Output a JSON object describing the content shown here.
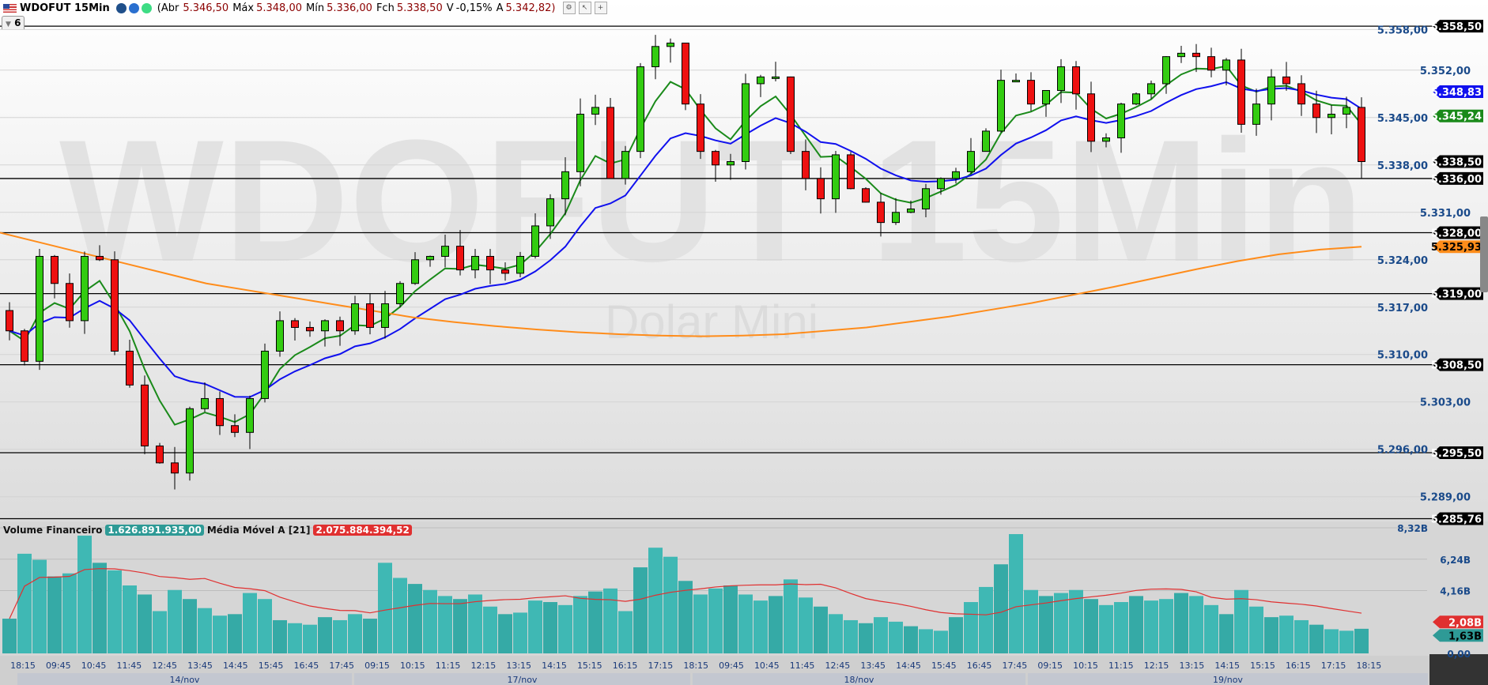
{
  "header": {
    "symbol": "WDOFUT 15Min",
    "open_label": "(Abr",
    "open": "5.346,50",
    "high_label": "Máx",
    "high": "5.348,00",
    "low_label": "Mín",
    "low": "5.336,00",
    "close_label": "Fch",
    "close": "5.338,50",
    "var_label": "V",
    "var": "-0,15%",
    "avg_label": "A",
    "avg": "5.342,82)",
    "indicator_count": "6",
    "icons": [
      "us-flag-icon",
      "bmf-icon",
      "blue-circle-icon",
      "green-status-icon",
      "settings-icon",
      "pointer-icon",
      "add-icon"
    ]
  },
  "watermark": {
    "title": "WDOFUT 15Min",
    "subtitle": "Dolar Mini"
  },
  "volume_header": {
    "label": "Volume Financeiro",
    "value": "1.626.891.935,00",
    "ma_label": "Média Móvel A [21]",
    "ma_value": "2.075.884.394,52"
  },
  "colors": {
    "up": "#33cc11",
    "down": "#ee1111",
    "ma_fast": "#1a8a1a",
    "ma_mid": "#1010ee",
    "ma_long": "#ff8c1a",
    "volume": "#3fb8b4",
    "volume_ma": "#e03030"
  },
  "chart_data": {
    "type": "candlestick",
    "price_axis": {
      "min": 5284,
      "max": 5361,
      "ticks": [
        "5.358,00",
        "5.352,00",
        "5.345,00",
        "5.338,00",
        "5.331,00",
        "5.324,00",
        "5.317,00",
        "5.310,00",
        "5.303,00",
        "5.296,00",
        "5.289,00"
      ],
      "tick_values": [
        5358,
        5352,
        5345,
        5338,
        5331,
        5324,
        5317,
        5310,
        5303,
        5296,
        5289
      ]
    },
    "closes": [
      5313.5,
      5309,
      5324.5,
      5320.5,
      5315,
      5324.5,
      5324,
      5310.5,
      5305.5,
      5296.5,
      5294,
      5292.5,
      5302,
      5303.5,
      5299.5,
      5298.5,
      5303.5,
      5310.5,
      5315,
      5314,
      5313.5,
      5315,
      5313.5,
      5317.5,
      5314,
      5317.5,
      5320.5,
      5324,
      5324.5,
      5326,
      5322.5,
      5324.5,
      5322.5,
      5322,
      5324.5,
      5329,
      5333,
      5337,
      5345.5,
      5346.5,
      5336,
      5340,
      5352.5,
      5355.5,
      5356,
      5347,
      5340,
      5338,
      5338.5,
      5350,
      5351,
      5351,
      5340,
      5336,
      5333,
      5339.5,
      5334.5,
      5332.5,
      5329.5,
      5331,
      5331.5,
      5334.5,
      5336,
      5337,
      5340,
      5343,
      5350.5,
      5350.5,
      5347,
      5349,
      5352.5,
      5348.5,
      5341.5,
      5342,
      5347,
      5348.5,
      5350,
      5354,
      5354.5,
      5354,
      5352,
      5353.5,
      5344,
      5347,
      5351,
      5350,
      5347,
      5345,
      5345.5,
      5346.5,
      5338.5
    ],
    "last_candle": {
      "open": 5346.5,
      "high": 5348,
      "low": 5336,
      "close": 5338.5
    },
    "ma_long": [
      5328,
      5326.5,
      5325,
      5323.5,
      5322,
      5320.5,
      5319.5,
      5318.5,
      5317.5,
      5316.5,
      5315.5,
      5314.8,
      5314.2,
      5313.7,
      5313.3,
      5313,
      5312.8,
      5312.7,
      5312.8,
      5313,
      5313.5,
      5314,
      5314.8,
      5315.6,
      5316.6,
      5317.6,
      5318.8,
      5320,
      5321.3,
      5322.6,
      5323.8,
      5324.8,
      5325.5,
      5325.93
    ],
    "ma_mid_label": "5.348,83",
    "ma_fast_label": "5.345,24",
    "ma_long_label": "5.325,93",
    "horizontal_levels": [
      {
        "value": 5358.5,
        "label": "5.358,50"
      },
      {
        "value": 5336,
        "label": "5.336,00"
      },
      {
        "value": 5328,
        "label": "5.328,00"
      },
      {
        "value": 5319,
        "label": "5.319,00"
      },
      {
        "value": 5308.5,
        "label": "5.308,50"
      },
      {
        "value": 5295.5,
        "label": "5.295,50"
      },
      {
        "value": 5285.76,
        "label": "5.285,76"
      }
    ],
    "last_price_label": "5.338,50",
    "volume_axis": {
      "max": 8.32,
      "ticks": [
        "8,32B",
        "6,24B",
        "4,16B",
        "0,00"
      ],
      "tick_values": [
        8.32,
        6.24,
        4.16,
        0
      ]
    },
    "volume_labels": {
      "ma": "2,08B",
      "last": "1,63B"
    },
    "volumes_b": [
      2.3,
      6.6,
      6.2,
      5.1,
      5.3,
      7.8,
      6.0,
      5.5,
      4.5,
      3.9,
      2.8,
      4.2,
      3.6,
      3.0,
      2.5,
      2.6,
      4.0,
      3.6,
      2.2,
      2.0,
      1.9,
      2.4,
      2.2,
      2.6,
      2.3,
      6.0,
      5.0,
      4.6,
      4.2,
      3.8,
      3.6,
      3.9,
      3.1,
      2.6,
      2.7,
      3.5,
      3.4,
      3.2,
      3.8,
      4.1,
      4.3,
      2.8,
      5.7,
      7.0,
      6.4,
      4.8,
      3.9,
      4.3,
      4.5,
      3.9,
      3.5,
      3.8,
      4.9,
      3.7,
      3.1,
      2.6,
      2.2,
      2.0,
      2.4,
      2.1,
      1.8,
      1.6,
      1.5,
      2.4,
      3.4,
      4.4,
      5.9,
      7.9,
      4.2,
      3.8,
      4.0,
      4.2,
      3.6,
      3.2,
      3.4,
      3.8,
      3.5,
      3.6,
      4.0,
      3.8,
      3.2,
      2.6,
      4.2,
      3.1,
      2.4,
      2.5,
      2.2,
      1.9,
      1.6,
      1.5,
      1.63
    ],
    "time_labels": [
      "18:15",
      "09:45",
      "10:45",
      "11:45",
      "12:45",
      "13:45",
      "14:45",
      "15:45",
      "16:45",
      "17:45",
      "09:15",
      "10:15",
      "11:15",
      "12:15",
      "13:15",
      "14:15",
      "15:15",
      "16:15",
      "17:15",
      "18:15",
      "09:45",
      "10:45",
      "11:45",
      "12:45",
      "13:45",
      "14:45",
      "15:45",
      "16:45",
      "17:45",
      "09:15",
      "10:15",
      "11:15",
      "12:15",
      "13:15",
      "14:15",
      "15:15",
      "16:15",
      "17:15",
      "18:15"
    ],
    "date_labels": [
      "14/nov",
      "17/nov",
      "18/nov",
      "19/nov"
    ]
  }
}
